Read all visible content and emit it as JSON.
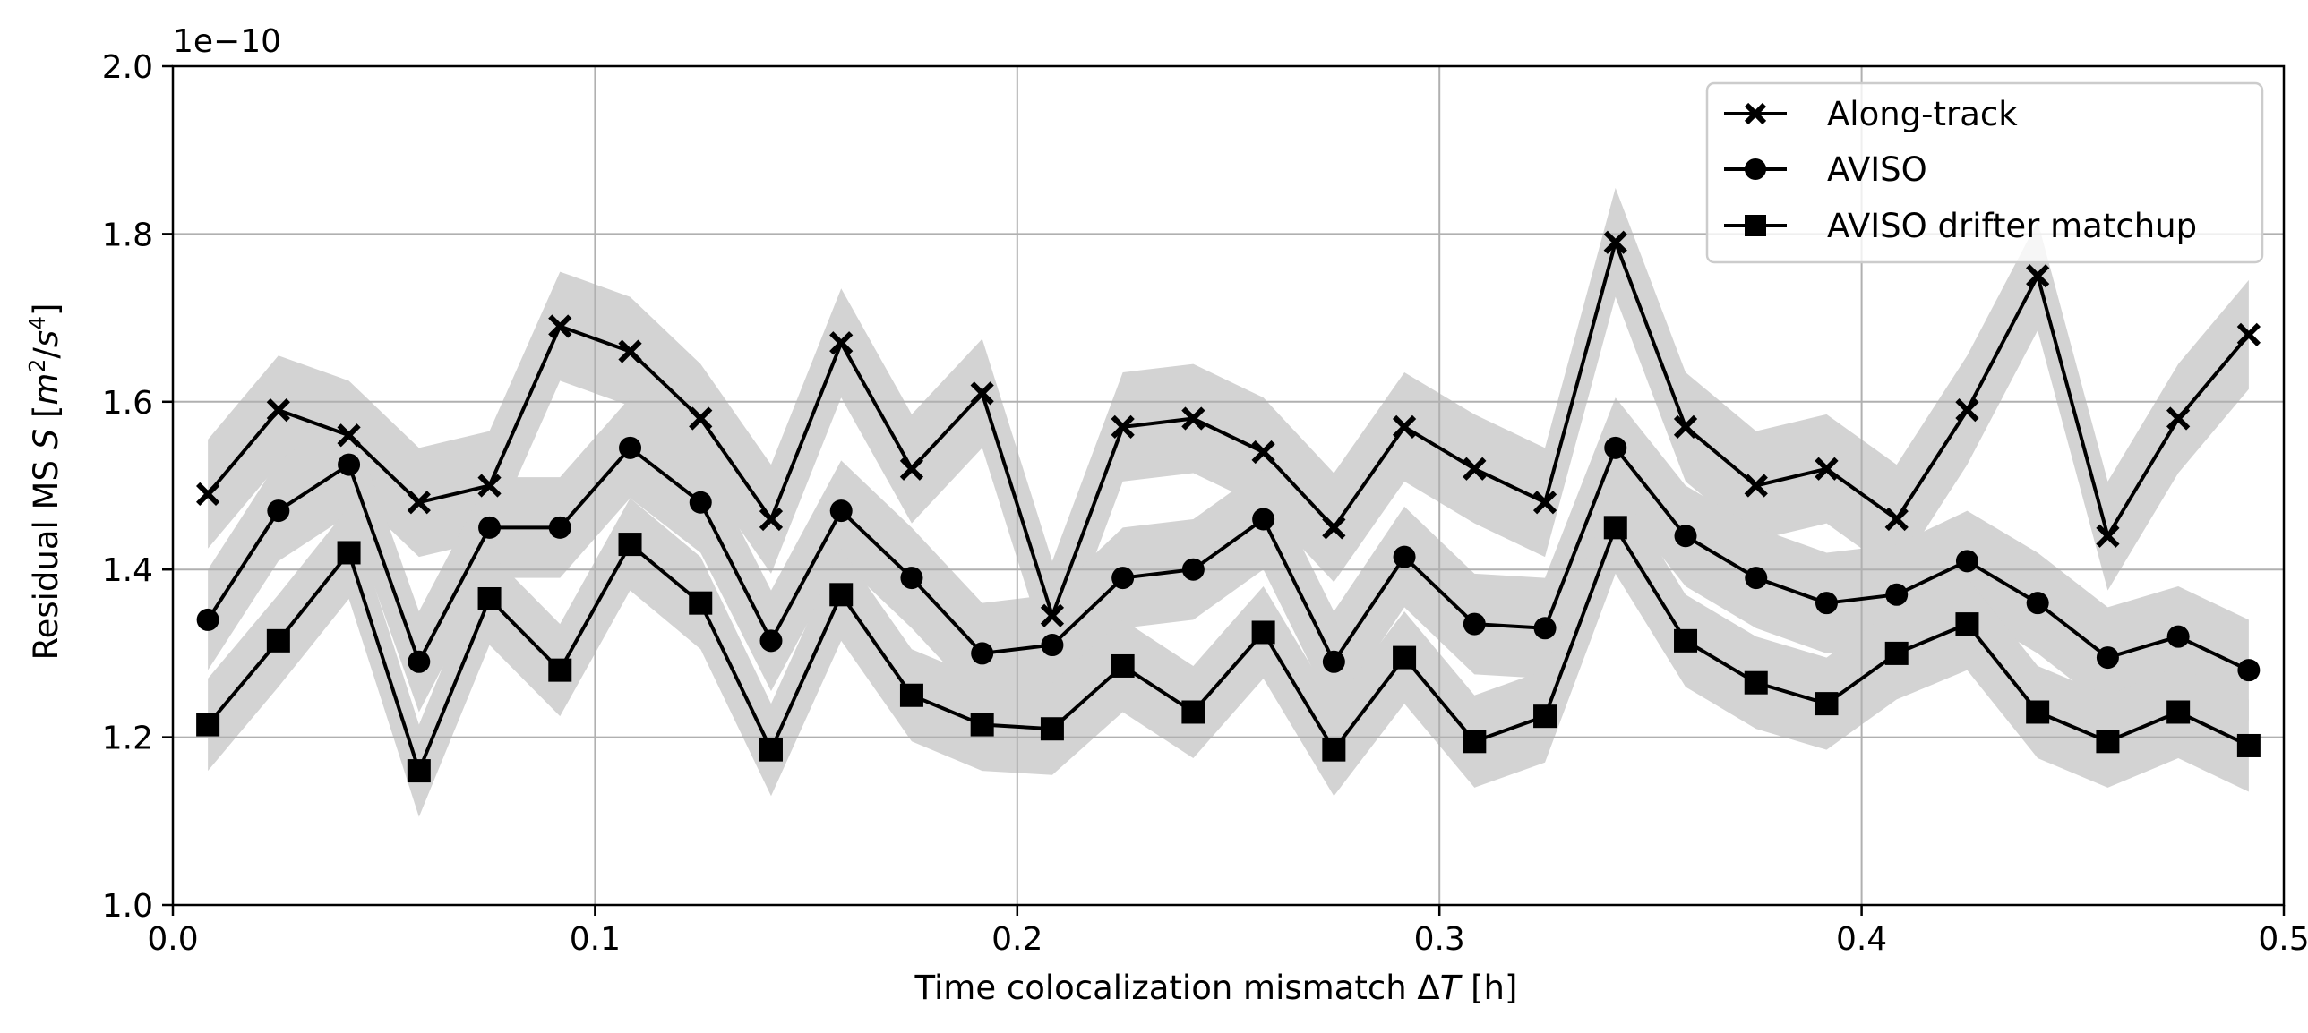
{
  "chart_data": {
    "type": "line",
    "title": "",
    "xlabel": "Time colocalization mismatch ΔT [h]",
    "ylabel": "Residual MS S [m²/s⁴]",
    "xlabel_parts": {
      "prefix": "Time colocalization mismatch Δ",
      "italic": "T",
      "suffix": " [h]"
    },
    "ylabel_parts": {
      "prefix": "Residual MS ",
      "italic_var": "S",
      "unit_open": " [",
      "m": "m",
      "sup2": "2",
      "slash": "/",
      "s": "s",
      "sup4": "4",
      "unit_close": "]"
    },
    "y_offset_text": "1e−10",
    "xlim": [
      0.0,
      0.5
    ],
    "ylim": [
      1.0,
      2.0
    ],
    "xticks": [
      0.0,
      0.1,
      0.2,
      0.3,
      0.4,
      0.5
    ],
    "xtick_labels": [
      "0.0",
      "0.1",
      "0.2",
      "0.3",
      "0.4",
      "0.5"
    ],
    "yticks": [
      1.0,
      1.2,
      1.4,
      1.6,
      1.8,
      2.0
    ],
    "ytick_labels": [
      "1.0",
      "1.2",
      "1.4",
      "1.6",
      "1.8",
      "2.0"
    ],
    "grid": true,
    "legend_position": "top-right",
    "x": [
      0.0083,
      0.025,
      0.0417,
      0.0583,
      0.075,
      0.0917,
      0.1083,
      0.125,
      0.1417,
      0.1583,
      0.175,
      0.1917,
      0.2083,
      0.225,
      0.2417,
      0.2583,
      0.275,
      0.2917,
      0.3083,
      0.325,
      0.3417,
      0.3583,
      0.375,
      0.3917,
      0.4083,
      0.425,
      0.4417,
      0.4583,
      0.475,
      0.4917
    ],
    "series": [
      {
        "name": "Along-track",
        "marker": "x",
        "values": [
          1.49,
          1.59,
          1.56,
          1.48,
          1.5,
          1.69,
          1.66,
          1.58,
          1.46,
          1.67,
          1.52,
          1.61,
          1.345,
          1.57,
          1.58,
          1.54,
          1.45,
          1.57,
          1.52,
          1.48,
          1.79,
          1.57,
          1.5,
          1.52,
          1.46,
          1.59,
          1.75,
          1.44,
          1.58,
          1.68
        ],
        "band": 0.065
      },
      {
        "name": "AVISO",
        "marker": "circle",
        "values": [
          1.34,
          1.47,
          1.525,
          1.29,
          1.45,
          1.45,
          1.545,
          1.48,
          1.315,
          1.47,
          1.39,
          1.3,
          1.31,
          1.39,
          1.4,
          1.46,
          1.29,
          1.415,
          1.335,
          1.33,
          1.545,
          1.44,
          1.39,
          1.36,
          1.37,
          1.41,
          1.36,
          1.295,
          1.32,
          1.28
        ],
        "band": 0.06
      },
      {
        "name": "AVISO drifter matchup",
        "marker": "square",
        "values": [
          1.215,
          1.315,
          1.42,
          1.16,
          1.365,
          1.28,
          1.43,
          1.36,
          1.185,
          1.37,
          1.25,
          1.215,
          1.21,
          1.285,
          1.23,
          1.325,
          1.185,
          1.295,
          1.195,
          1.225,
          1.45,
          1.315,
          1.265,
          1.24,
          1.3,
          1.335,
          1.23,
          1.195,
          1.23,
          1.19
        ],
        "band": 0.055
      }
    ],
    "colors": {
      "line": "#000000",
      "band": "#d3d3d3",
      "grid": "#b0b0b0",
      "legend_border": "#cccccc"
    }
  }
}
